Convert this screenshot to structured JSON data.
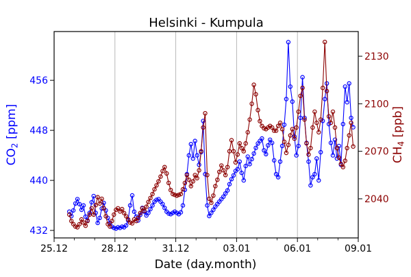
{
  "title": "Helsinki - Kumpula",
  "xlabel": "Date (day.month)",
  "colors": {
    "co2": "#0000ff",
    "ch4": "#8b0000",
    "grid": "#b0b0b0",
    "axis": "#000000",
    "background": "#ffffff"
  },
  "x_axis": {
    "major_days": [
      0,
      3,
      6,
      9,
      12,
      15
    ],
    "major_labels": [
      "25.12",
      "28.12",
      "31.12",
      "03.01",
      "06.01",
      "09.01"
    ],
    "minor_days": [
      1,
      2,
      4,
      5,
      7,
      8,
      10,
      11,
      13,
      14
    ],
    "gridline_days": [
      3,
      6,
      9,
      12
    ]
  },
  "left_axis": {
    "label_pre": "CO",
    "label_sub": "2",
    "label_post": " [ppm]",
    "ticks": [
      432,
      440,
      448,
      456
    ]
  },
  "right_axis": {
    "label_pre": "CH",
    "label_sub": "4",
    "label_post": " [ppb]",
    "ticks": [
      2040,
      2070,
      2100,
      2130
    ]
  },
  "chart_data": {
    "type": "line",
    "title": "Helsinki - Kumpula",
    "xlabel": "Date (day.month)",
    "ylabel_left": "CO2 [ppm]",
    "ylabel_right": "CH4 [ppb]",
    "xlim": [
      0,
      15
    ],
    "ylim_left": [
      430.8,
      463.8
    ],
    "ylim_right": [
      2015.3,
      2145.6
    ],
    "grid": "vertical gray lines at 28.12, 31.12, 03.01, 06.01",
    "x_unit": "days since 25.12 (x tick labels are day.month dates)",
    "x_start": 0.75,
    "x_step": 0.1,
    "series": [
      {
        "name": "CO2 [ppm]",
        "axis": "left",
        "color": "#0000ff",
        "marker": "circle-open",
        "values": [
          435.0,
          434.3,
          435.2,
          436.3,
          437.0,
          436.2,
          435.3,
          436.0,
          434.2,
          433.6,
          434.8,
          436.5,
          437.5,
          434.8,
          433.2,
          434.0,
          435.5,
          436.4,
          435.2,
          434.0,
          433.2,
          432.6,
          432.4,
          432.3,
          432.5,
          432.4,
          432.6,
          432.5,
          432.8,
          433.6,
          436.0,
          437.6,
          435.0,
          434.2,
          433.6,
          434.5,
          435.6,
          435.0,
          434.4,
          434.8,
          435.4,
          436.0,
          436.6,
          436.9,
          437.0,
          436.6,
          436.2,
          435.6,
          435.0,
          434.7,
          434.6,
          434.8,
          435.0,
          434.8,
          434.6,
          434.9,
          436.0,
          438.5,
          441.0,
          444.0,
          445.8,
          443.5,
          446.3,
          444.0,
          442.5,
          444.5,
          449.5,
          441.0,
          436.0,
          434.3,
          434.8,
          435.3,
          435.8,
          436.2,
          436.6,
          437.0,
          437.4,
          437.9,
          438.4,
          439.4,
          440.2,
          440.8,
          441.5,
          441.8,
          443.0,
          441.2,
          440.0,
          442.3,
          443.8,
          442.6,
          443.4,
          444.3,
          445.2,
          445.9,
          446.3,
          446.7,
          444.8,
          444.2,
          445.6,
          446.5,
          446.0,
          443.2,
          441.0,
          440.5,
          443.0,
          445.5,
          448.9,
          453.0,
          462.1,
          455.0,
          452.6,
          447.0,
          444.0,
          445.5,
          450.0,
          456.5,
          450.0,
          446.0,
          443.0,
          439.2,
          440.5,
          441.0,
          443.5,
          440.0,
          444.5,
          449.5,
          453.0,
          455.5,
          449.0,
          446.0,
          444.0,
          446.5,
          443.5,
          445.5,
          442.5,
          449.0,
          455.0,
          452.5,
          455.5,
          450.0,
          448.5
        ]
      },
      {
        "name": "CH4 [ppb]",
        "axis": "right",
        "color": "#8b0000",
        "marker": "circle-open",
        "values": [
          2030,
          2026,
          2024,
          2022.5,
          2022,
          2024,
          2027,
          2025,
          2023,
          2026,
          2030,
          2034,
          2030,
          2036,
          2041,
          2037,
          2040,
          2034,
          2029,
          2024,
          2022.5,
          2026,
          2030,
          2033,
          2034,
          2032,
          2033.5,
          2031,
          2029,
          2027,
          2025,
          2024.5,
          2027,
          2026,
          2028,
          2031,
          2034,
          2032.5,
          2035,
          2038,
          2040.5,
          2043,
          2046,
          2048.5,
          2051,
          2054,
          2057.5,
          2060,
          2056,
          2050,
          2045.5,
          2043,
          2042.5,
          2042,
          2042.5,
          2043,
          2046,
          2050,
          2055,
          2052,
          2048,
          2051,
          2055,
          2053,
          2058,
          2070,
          2085,
          2094,
          2055,
          2040,
          2037.5,
          2042,
          2048,
          2052,
          2057,
          2061,
          2058,
          2055,
          2060,
          2070,
          2077,
          2070,
          2063,
          2068,
          2075,
          2072,
          2070,
          2075,
          2082,
          2090,
          2100,
          2112,
          2106,
          2096,
          2089,
          2086,
          2084.5,
          2084,
          2085,
          2086,
          2085,
          2083,
          2083,
          2086,
          2088,
          2084,
          2076,
          2069,
          2074,
          2080,
          2084,
          2078,
          2085,
          2095,
          2105,
          2110,
          2090,
          2075,
          2068,
          2072,
          2085,
          2095,
          2088,
          2082,
          2090,
          2110,
          2139,
          2108,
          2092,
          2088,
          2095,
          2085,
          2072,
          2066,
          2062,
          2060,
          2064,
          2072,
          2080,
          2088,
          2073
        ]
      }
    ]
  }
}
